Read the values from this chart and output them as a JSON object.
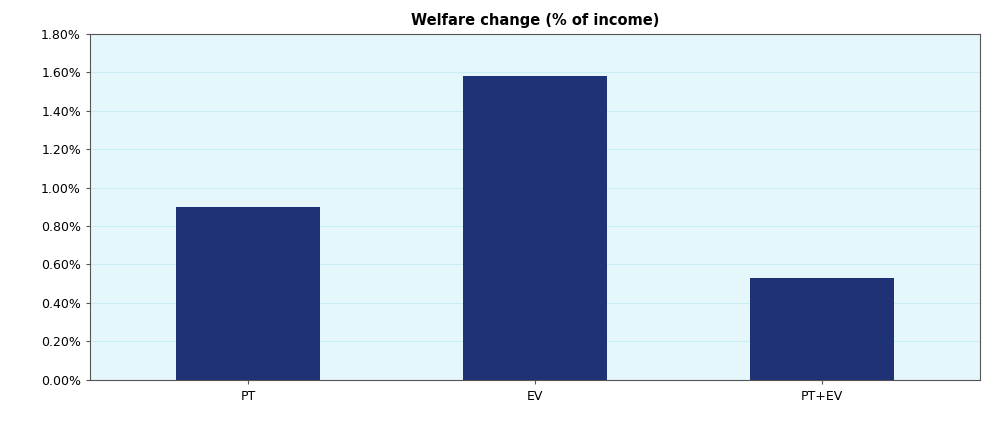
{
  "categories": [
    "PT",
    "EV",
    "PT+EV"
  ],
  "values": [
    0.009,
    0.0158,
    0.0053
  ],
  "bar_color": "#1F3275",
  "background_color": "#E5F7FA",
  "fig_background": "#ffffff",
  "title": "Welfare change (% of income)",
  "title_fontsize": 10.5,
  "title_fontweight": "bold",
  "ylim": [
    0,
    0.018
  ],
  "yticks": [
    0.0,
    0.002,
    0.004,
    0.006,
    0.008,
    0.01,
    0.012,
    0.014,
    0.016,
    0.018
  ],
  "ytick_labels": [
    "0.00%",
    "0.20%",
    "0.40%",
    "0.60%",
    "0.80%",
    "1.00%",
    "1.20%",
    "1.40%",
    "1.60%",
    "1.80%"
  ],
  "bar_width": 0.5,
  "grid_color": "#c8eef4",
  "tick_label_fontsize": 9,
  "spine_color": "#555555",
  "xlim": [
    -0.55,
    2.55
  ]
}
